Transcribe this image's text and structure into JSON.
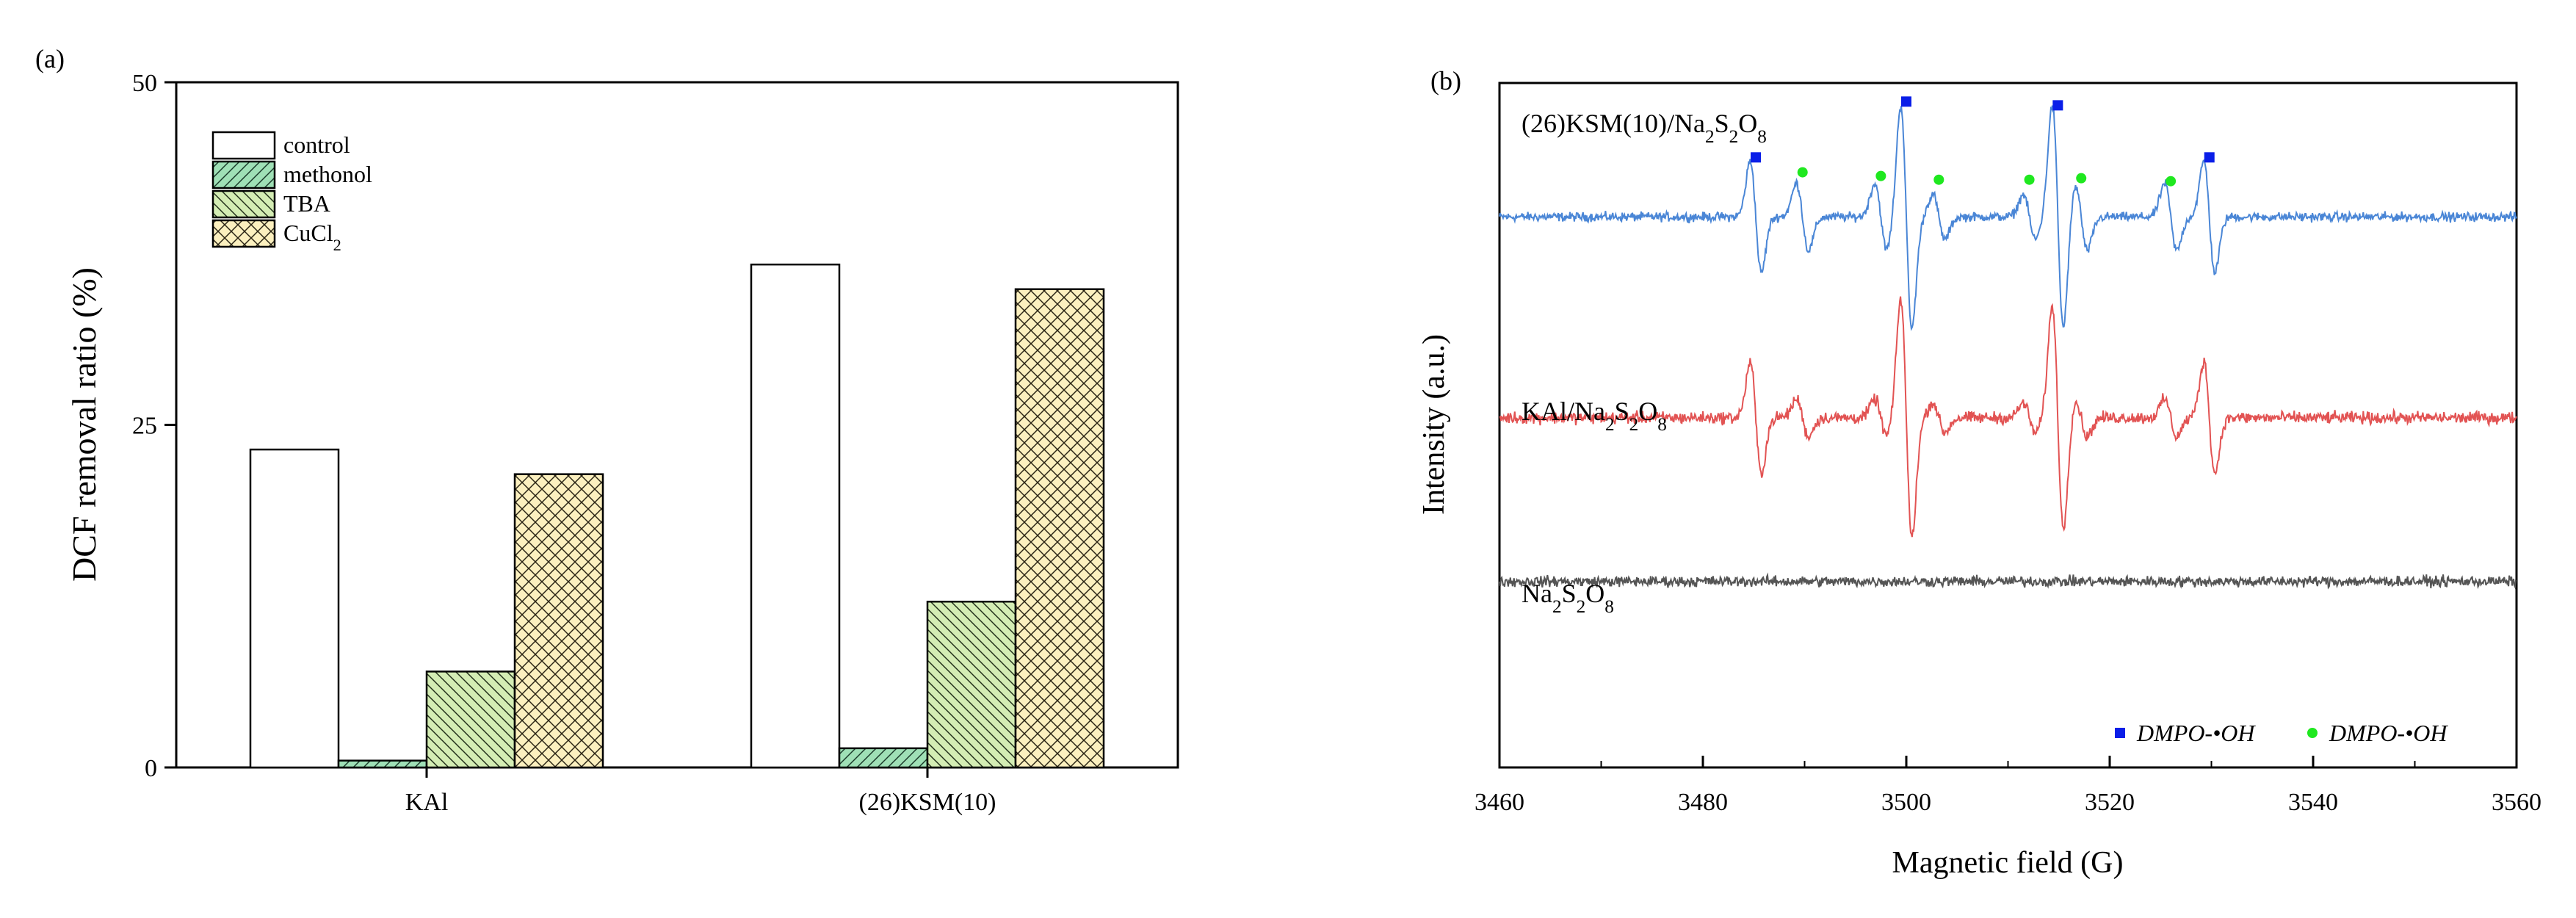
{
  "chart_data": [
    {
      "type": "bar",
      "panel_label": "(a)",
      "title": "",
      "xlabel": "",
      "ylabel": "DCF removal ratio (%)",
      "ylim": [
        0,
        50
      ],
      "yticks": [
        "0",
        "25",
        "50"
      ],
      "categories": [
        "KAl",
        "(26)KSM(10)"
      ],
      "series": [
        {
          "name": "control",
          "legend_label": {
            "base": "control",
            "sub": ""
          },
          "pattern": "none",
          "fill": "#ffffff",
          "values": [
            23.2,
            36.7
          ]
        },
        {
          "name": "methonol",
          "legend_label": {
            "base": "methonol",
            "sub": ""
          },
          "pattern": "diag-right",
          "fill": "#9fe0b6",
          "values": [
            0.5,
            1.4
          ]
        },
        {
          "name": "TBA",
          "legend_label": {
            "base": "TBA",
            "sub": ""
          },
          "pattern": "diag-left",
          "fill": "#d4edb4",
          "values": [
            7.0,
            12.1
          ]
        },
        {
          "name": "CuCl2",
          "legend_label": {
            "base": "CuCl",
            "sub": "2"
          },
          "pattern": "cross",
          "fill": "#fcf0bf",
          "values": [
            21.4,
            34.9
          ]
        }
      ],
      "legend_position": "top-left"
    },
    {
      "type": "line",
      "panel_label": "(b)",
      "title": "",
      "xlabel": "Magnetic field (G)",
      "ylabel": "Intensity (a.u.)",
      "xlim": [
        3460,
        3560
      ],
      "xticks": [
        "3460",
        "3480",
        "3500",
        "3520",
        "3540",
        "3560"
      ],
      "y_ticks_shown": false,
      "series": [
        {
          "name": "(26)KSM(10)/Na2S2O8",
          "label_parts": [
            [
              "(26)KSM(10)/Na",
              ""
            ],
            [
              "2",
              "sub"
            ],
            [
              "S",
              ""
            ],
            [
              "2",
              "sub"
            ],
            [
              "O",
              ""
            ],
            [
              "8",
              "sub"
            ]
          ],
          "color": "#4a86d6",
          "baseline": 0,
          "noise": 0.06,
          "dmpo_oh_peaks": [
            {
              "x": 3485.2,
              "amp": 0.75
            },
            {
              "x": 3500.0,
              "amp": 1.5
            },
            {
              "x": 3514.9,
              "amp": 1.5
            },
            {
              "x": 3529.8,
              "amp": 0.75
            }
          ],
          "secondary_peaks": [
            {
              "x": 3489.8,
              "amp": 0.45
            },
            {
              "x": 3497.5,
              "amp": 0.45
            },
            {
              "x": 3503.2,
              "amp": 0.3
            },
            {
              "x": 3512.1,
              "amp": 0.3
            },
            {
              "x": 3517.2,
              "amp": 0.45
            },
            {
              "x": 3526.0,
              "amp": 0.45
            }
          ]
        },
        {
          "name": "KAl/Na2S2O8",
          "label_parts": [
            [
              "KAl/Na",
              ""
            ],
            [
              "2",
              "sub"
            ],
            [
              "S",
              ""
            ],
            [
              "2",
              "sub"
            ],
            [
              "O",
              ""
            ],
            [
              "8",
              "sub"
            ]
          ],
          "color": "#e25353",
          "baseline": -2.7,
          "noise": 0.08,
          "dmpo_oh_peaks": [
            {
              "x": 3485.2,
              "amp": 0.75
            },
            {
              "x": 3500.0,
              "amp": 1.6
            },
            {
              "x": 3514.9,
              "amp": 1.5
            },
            {
              "x": 3529.8,
              "amp": 0.75
            }
          ],
          "secondary_peaks": [
            {
              "x": 3489.8,
              "amp": 0.25
            },
            {
              "x": 3497.5,
              "amp": 0.25
            },
            {
              "x": 3503.2,
              "amp": 0.2
            },
            {
              "x": 3512.1,
              "amp": 0.2
            },
            {
              "x": 3517.2,
              "amp": 0.25
            },
            {
              "x": 3526.0,
              "amp": 0.25
            }
          ]
        },
        {
          "name": "Na2S2O8",
          "label_parts": [
            [
              "Na",
              ""
            ],
            [
              "2",
              "sub"
            ],
            [
              "S",
              ""
            ],
            [
              "2",
              "sub"
            ],
            [
              "O",
              ""
            ],
            [
              "8",
              "sub"
            ]
          ],
          "color": "#555555",
          "baseline": -4.9,
          "noise": 0.07,
          "dmpo_oh_peaks": [],
          "secondary_peaks": []
        }
      ],
      "markers": {
        "square": {
          "color": "#0a1ee8",
          "points": [
            {
              "x": 3485.2,
              "y": 0.8
            },
            {
              "x": 3500.0,
              "y": 1.55
            },
            {
              "x": 3514.9,
              "y": 1.5
            },
            {
              "x": 3529.8,
              "y": 0.8
            }
          ]
        },
        "circle": {
          "color": "#1fe81f",
          "points": [
            {
              "x": 3489.8,
              "y": 0.6
            },
            {
              "x": 3497.5,
              "y": 0.55
            },
            {
              "x": 3503.2,
              "y": 0.5
            },
            {
              "x": 3512.1,
              "y": 0.5
            },
            {
              "x": 3517.2,
              "y": 0.52
            },
            {
              "x": 3526.0,
              "y": 0.48
            }
          ]
        }
      },
      "legend": [
        {
          "marker": "square",
          "color": "#0a1ee8",
          "label": "DMPO-•OH"
        },
        {
          "marker": "circle",
          "color": "#1fe81f",
          "label": "DMPO-•OH"
        }
      ],
      "legend_position": "bottom-right"
    }
  ]
}
